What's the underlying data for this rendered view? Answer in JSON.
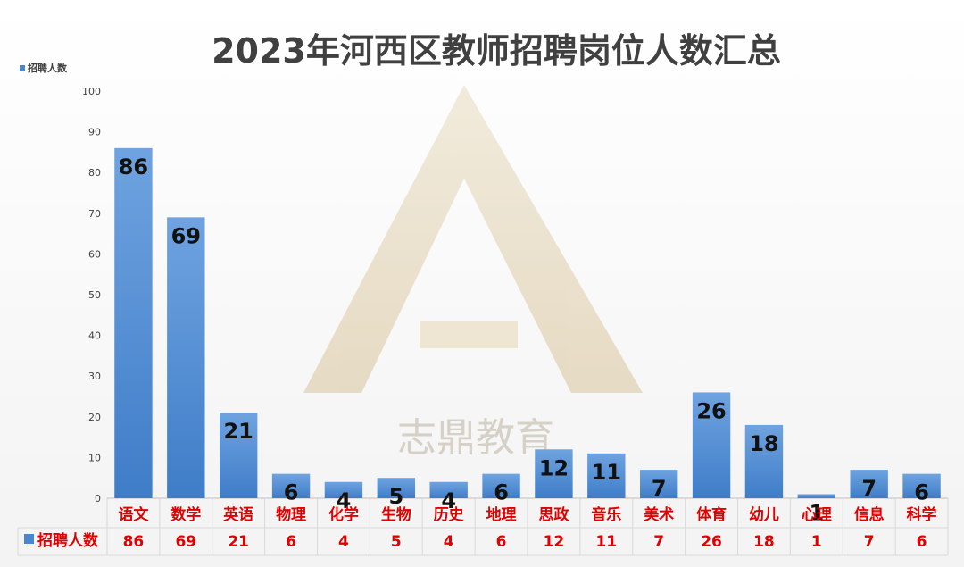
{
  "colors": {
    "bar": "#4a86cf",
    "bar_light": "#7cb0e6",
    "label_red": "#e00000",
    "grid": "#d9d9d9"
  },
  "chart_data": {
    "type": "bar",
    "title": "2023年河西区教师招聘岗位人数汇总",
    "categories": [
      "语文",
      "数学",
      "英语",
      "物理",
      "化学",
      "生物",
      "历史",
      "地理",
      "思政",
      "音乐",
      "美术",
      "体育",
      "幼儿",
      "心理",
      "信息",
      "科学"
    ],
    "series": [
      {
        "name": "招聘人数",
        "values": [
          86,
          69,
          21,
          6,
          4,
          5,
          4,
          6,
          12,
          11,
          7,
          26,
          18,
          1,
          7,
          6
        ]
      }
    ],
    "ylim": [
      0,
      100
    ],
    "yticks": [
      0,
      10,
      20,
      30,
      40,
      50,
      60,
      70,
      80,
      90,
      100
    ],
    "legend_position": "top-left",
    "data_table": true
  },
  "watermark": {
    "text": "志鼎教育"
  }
}
